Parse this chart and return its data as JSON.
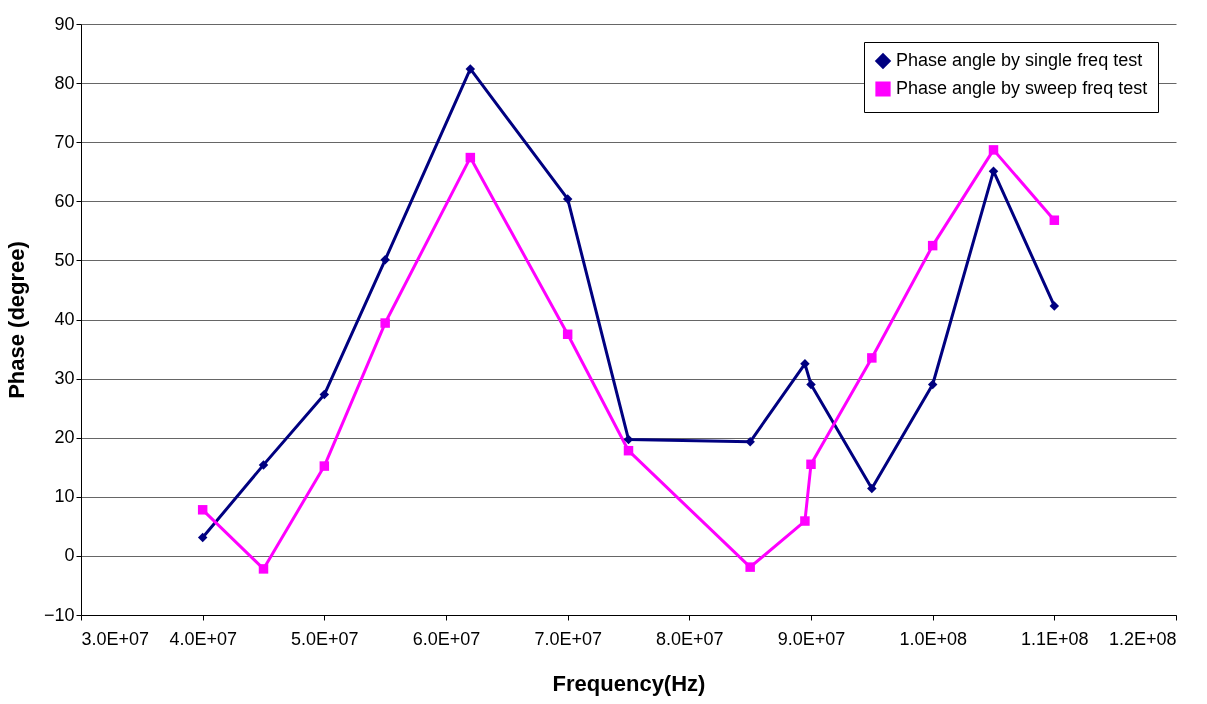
{
  "chart_data": {
    "type": "line",
    "xlabel": "Frequency(Hz)",
    "ylabel": "Phase (degree)",
    "xlim": [
      30000000,
      120000000
    ],
    "xticks": [
      {
        "value": 30000000,
        "label": "3.0E+07"
      },
      {
        "value": 40000000,
        "label": "4.0E+07"
      },
      {
        "value": 50000000,
        "label": "5.0E+07"
      },
      {
        "value": 60000000,
        "label": "6.0E+07"
      },
      {
        "value": 70000000,
        "label": "7.0E+07"
      },
      {
        "value": 80000000,
        "label": "8.0E+07"
      },
      {
        "value": 90000000,
        "label": "9.0E+07"
      },
      {
        "value": 100000000,
        "label": "1.0E+08"
      },
      {
        "value": 110000000,
        "label": "1.1E+08"
      },
      {
        "value": 120000000,
        "label": "1.2E+08"
      }
    ],
    "ylim": [
      -10,
      90
    ],
    "yticks": [
      -10,
      0,
      10,
      20,
      30,
      40,
      50,
      60,
      70,
      80,
      90
    ],
    "grid": "y",
    "legend": "top right",
    "x": [
      40000000,
      45000000,
      50000000,
      55000000,
      62000000,
      70000000,
      75000000,
      85000000,
      89500000,
      90000000,
      95000000,
      100000000,
      105000000,
      110000000
    ],
    "series": [
      {
        "name": "Phase angle by single freq test",
        "color": "#000080",
        "marker": "diamond",
        "values": [
          3.1,
          15.4,
          27.3,
          50.1,
          82.4,
          60.4,
          19.7,
          19.3,
          32.5,
          29.0,
          11.4,
          29.0,
          65.1,
          42.3
        ]
      },
      {
        "name": "Phase angle by sweep freq test",
        "color": "#ff00ff",
        "marker": "square",
        "values": [
          7.8,
          -2.2,
          15.2,
          39.4,
          67.4,
          37.5,
          17.8,
          -1.9,
          5.9,
          15.5,
          33.5,
          52.5,
          68.7,
          56.8
        ]
      }
    ]
  }
}
